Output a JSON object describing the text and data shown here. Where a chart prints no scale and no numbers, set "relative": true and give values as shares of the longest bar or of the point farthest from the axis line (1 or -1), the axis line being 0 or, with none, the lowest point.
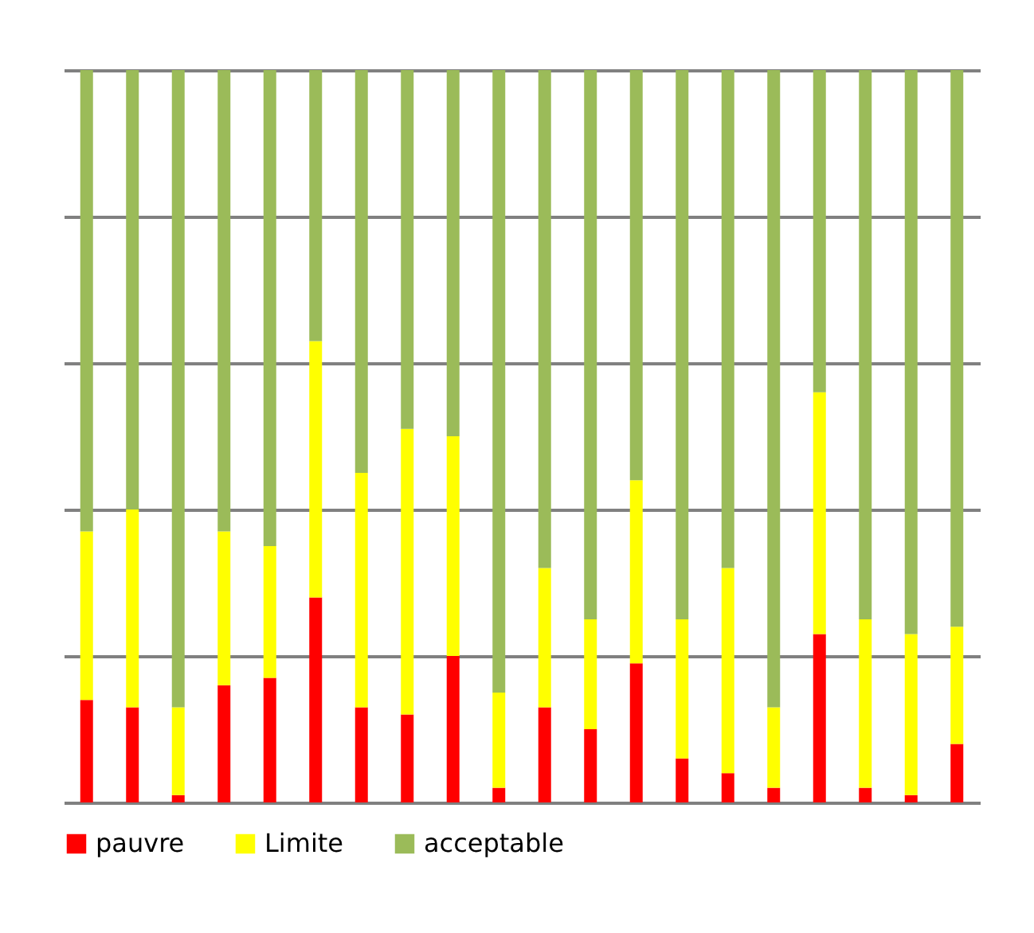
{
  "chart_data": {
    "type": "bar",
    "stacked": true,
    "relative": true,
    "grid": "y",
    "legend": "bottom",
    "categories": [
      null,
      null,
      null,
      null,
      null,
      null,
      null,
      null,
      null,
      null,
      null,
      null,
      null,
      null,
      null,
      null,
      null,
      null,
      null,
      null
    ],
    "series": [
      {
        "name": "pauvre",
        "color": "#ff0000",
        "values": [
          0.14,
          0.13,
          0.01,
          0.16,
          0.17,
          0.28,
          0.13,
          0.12,
          0.2,
          0.02,
          0.13,
          0.1,
          0.19,
          0.06,
          0.04,
          0.02,
          0.23,
          0.02,
          0.01,
          0.08
        ]
      },
      {
        "name": "Limite",
        "color": "#ffff00",
        "values": [
          0.23,
          0.27,
          0.12,
          0.21,
          0.18,
          0.35,
          0.32,
          0.39,
          0.3,
          0.13,
          0.19,
          0.15,
          0.25,
          0.19,
          0.28,
          0.11,
          0.33,
          0.23,
          0.22,
          0.16
        ]
      },
      {
        "name": "acceptable",
        "color": "#9bbb59",
        "values": [
          0.63,
          0.6,
          0.87,
          0.63,
          0.65,
          0.37,
          0.55,
          0.49,
          0.5,
          0.85,
          0.68,
          0.75,
          0.56,
          0.75,
          0.68,
          0.87,
          0.44,
          0.75,
          0.77,
          0.76
        ]
      }
    ]
  }
}
